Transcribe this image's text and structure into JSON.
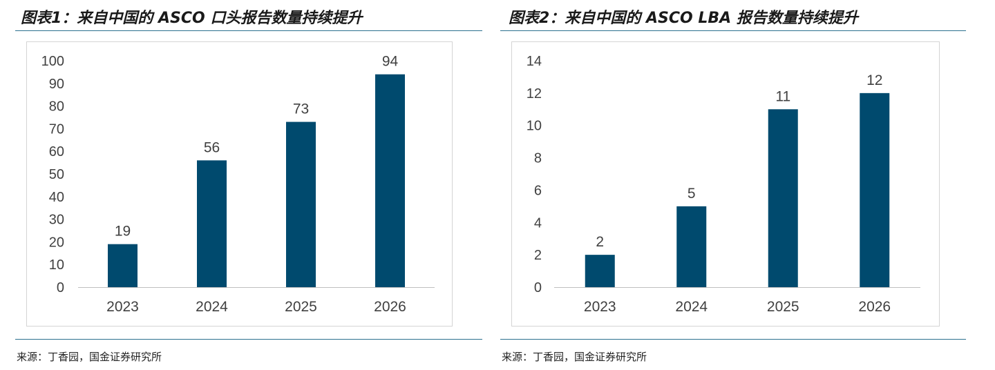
{
  "chart_data": [
    {
      "type": "bar",
      "title": "图表1：来自中国的 ASCO 口头报告数量持续提升",
      "categories": [
        "2023",
        "2024",
        "2025",
        "2026"
      ],
      "values": [
        19,
        56,
        73,
        94
      ],
      "data_labels": [
        "19",
        "56",
        "73",
        "94"
      ],
      "ylim": [
        0,
        100
      ],
      "yticks": [
        "0",
        "10",
        "20",
        "30",
        "40",
        "50",
        "60",
        "70",
        "80",
        "90",
        "100"
      ],
      "xlabel": "",
      "ylabel": "",
      "grid": false,
      "bar_color": "#004a6e",
      "source": "来源：丁香园，国金证券研究所"
    },
    {
      "type": "bar",
      "title": "图表2：来自中国的 ASCO LBA 报告数量持续提升",
      "categories": [
        "2023",
        "2024",
        "2025",
        "2026"
      ],
      "values": [
        2,
        5,
        11,
        12
      ],
      "data_labels": [
        "2",
        "5",
        "11",
        "12"
      ],
      "ylim": [
        0,
        14
      ],
      "yticks": [
        "0",
        "2",
        "4",
        "6",
        "8",
        "10",
        "12",
        "14"
      ],
      "xlabel": "",
      "ylabel": "",
      "grid": false,
      "bar_color": "#004a6e",
      "source": "来源：丁香园，国金证券研究所"
    }
  ],
  "colors": {
    "accent_rule": "#2a6f8f",
    "frame_border": "#d4d4d4"
  }
}
